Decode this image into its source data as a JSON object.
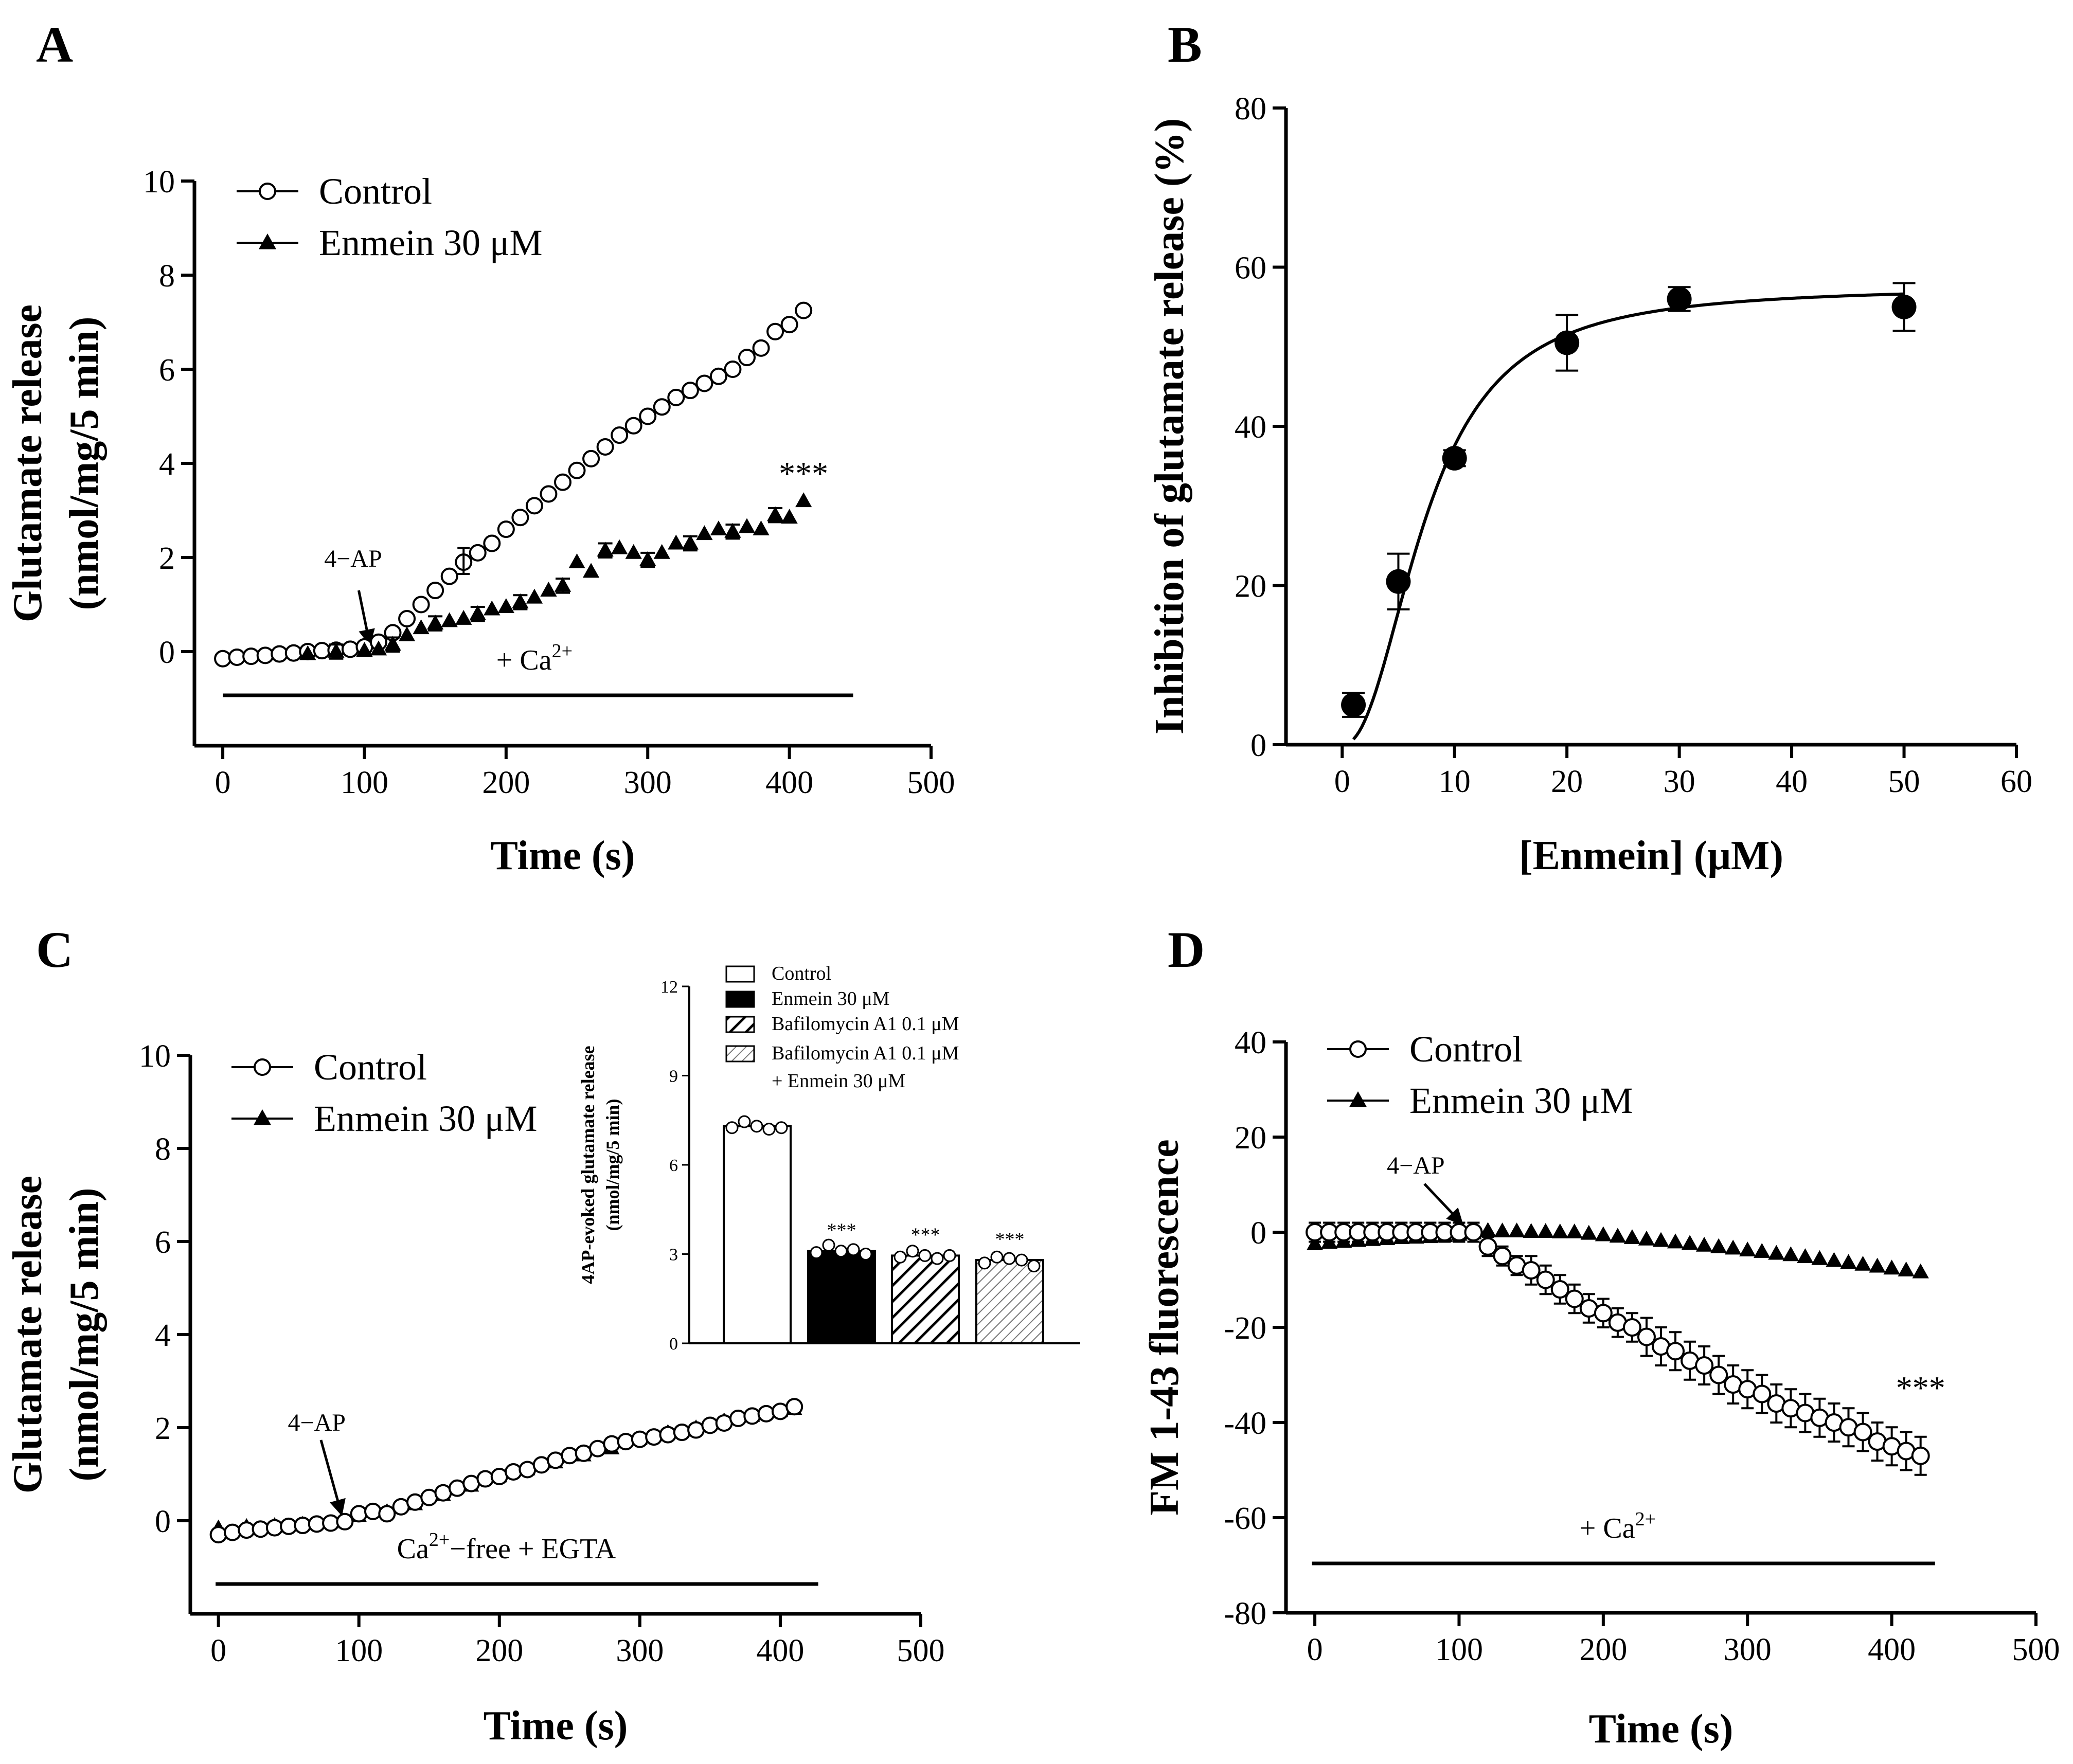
{
  "panels": {
    "A": {
      "letter": "A"
    },
    "B": {
      "letter": "B"
    },
    "C": {
      "letter": "C"
    },
    "D": {
      "letter": "D"
    }
  },
  "chart_data": [
    {
      "id": "A",
      "type": "line",
      "xlabel": "Time (s)",
      "ylabel": [
        "Glutamate release",
        "(nmol/mg/5 min)"
      ],
      "xlim": [
        -20,
        500
      ],
      "ylim": [
        -2,
        10
      ],
      "xticks": [
        0,
        100,
        200,
        300,
        400,
        500
      ],
      "yticks": [
        0,
        2,
        4,
        6,
        8,
        10
      ],
      "legend": [
        "Control",
        "Enmein 30 μM"
      ],
      "annotation_arrow": "4−AP",
      "condition_text": "+ Ca",
      "condition_sup": "2+",
      "significance": "***",
      "series": [
        {
          "name": "Control",
          "marker": "open-circle",
          "x": [
            0,
            10,
            20,
            30,
            40,
            50,
            60,
            70,
            80,
            90,
            100,
            110,
            120,
            130,
            140,
            150,
            160,
            170,
            180,
            190,
            200,
            210,
            220,
            230,
            240,
            250,
            260,
            270,
            280,
            290,
            300,
            310,
            320,
            330,
            340,
            350,
            360,
            370,
            380,
            390,
            400,
            410
          ],
          "y": [
            -0.15,
            -0.12,
            -0.1,
            -0.08,
            -0.05,
            -0.03,
            0,
            0.02,
            0.03,
            0.05,
            0.1,
            0.2,
            0.4,
            0.7,
            1.0,
            1.3,
            1.6,
            1.9,
            2.1,
            2.3,
            2.6,
            2.85,
            3.1,
            3.35,
            3.6,
            3.85,
            4.1,
            4.35,
            4.6,
            4.8,
            5.0,
            5.2,
            5.4,
            5.55,
            5.7,
            5.85,
            6.0,
            6.25,
            6.45,
            6.8,
            6.95,
            7.25
          ]
        },
        {
          "name": "Enmein 30 μM",
          "marker": "filled-triangle",
          "x": [
            60,
            80,
            100,
            110,
            120,
            130,
            140,
            150,
            160,
            170,
            180,
            190,
            200,
            210,
            220,
            230,
            240,
            250,
            260,
            270,
            280,
            290,
            300,
            310,
            320,
            330,
            340,
            350,
            360,
            370,
            380,
            390,
            400,
            410
          ],
          "y": [
            -0.05,
            0,
            0.02,
            0.05,
            0.15,
            0.35,
            0.5,
            0.6,
            0.65,
            0.7,
            0.8,
            0.9,
            0.95,
            1.05,
            1.15,
            1.3,
            1.4,
            1.9,
            1.7,
            2.15,
            2.2,
            2.1,
            1.95,
            2.1,
            2.3,
            2.3,
            2.5,
            2.6,
            2.55,
            2.65,
            2.6,
            2.9,
            2.85,
            3.2
          ]
        }
      ]
    },
    {
      "id": "B",
      "type": "scatter",
      "xlabel": "[Enmein] (μM)",
      "ylabel": [
        "Inhibition of glutamate release (%)"
      ],
      "xlim": [
        -5,
        60
      ],
      "ylim": [
        0,
        80
      ],
      "xticks": [
        0,
        10,
        20,
        30,
        40,
        50,
        60
      ],
      "yticks": [
        0,
        20,
        40,
        60,
        80
      ],
      "series": [
        {
          "name": "Inhibition",
          "marker": "filled-circle",
          "x": [
            1,
            5,
            10,
            20,
            30,
            50
          ],
          "y": [
            5,
            20.5,
            36,
            50.5,
            56,
            55
          ],
          "err": [
            1.5,
            3.5,
            1.0,
            3.5,
            1.5,
            3.0
          ]
        }
      ],
      "fit": {
        "type": "sigmoid",
        "top": 57.5,
        "ec50": 7.5,
        "hill": 2.2
      }
    },
    {
      "id": "C",
      "type": "line",
      "xlabel": "Time (s)",
      "ylabel": [
        "Glutamate release",
        "(nmol/mg/5 min)"
      ],
      "xlim": [
        -20,
        500
      ],
      "ylim": [
        -2,
        10
      ],
      "xticks": [
        0,
        100,
        200,
        300,
        400,
        500
      ],
      "yticks": [
        0,
        2,
        4,
        6,
        8,
        10
      ],
      "legend": [
        "Control",
        "Enmein 30 μM"
      ],
      "annotation_arrow": "4−AP",
      "condition_text": "Ca",
      "condition_sup": "2+",
      "condition_rest": "−free  + EGTA",
      "series": [
        {
          "name": "Control",
          "marker": "open-circle",
          "x": [
            0,
            10,
            20,
            30,
            40,
            50,
            60,
            70,
            80,
            90,
            100,
            110,
            120,
            130,
            140,
            150,
            160,
            170,
            180,
            190,
            200,
            210,
            220,
            230,
            240,
            250,
            260,
            270,
            280,
            290,
            300,
            310,
            320,
            330,
            340,
            350,
            360,
            370,
            380,
            390,
            400,
            410
          ],
          "y": [
            -0.3,
            -0.25,
            -0.2,
            -0.18,
            -0.15,
            -0.12,
            -0.1,
            -0.07,
            -0.05,
            -0.02,
            0.15,
            0.2,
            0.15,
            0.3,
            0.4,
            0.5,
            0.6,
            0.7,
            0.8,
            0.9,
            0.95,
            1.05,
            1.1,
            1.2,
            1.3,
            1.4,
            1.45,
            1.55,
            1.65,
            1.7,
            1.75,
            1.8,
            1.85,
            1.9,
            1.95,
            2.05,
            2.1,
            2.2,
            2.25,
            2.3,
            2.35,
            2.45
          ]
        },
        {
          "name": "Enmein 30 μM",
          "marker": "filled-triangle",
          "x": [
            0,
            20,
            40,
            60,
            80,
            100,
            120,
            140,
            160,
            180,
            200,
            220,
            240,
            260,
            280,
            300,
            320,
            340,
            360,
            380,
            400,
            410
          ],
          "y": [
            -0.15,
            -0.12,
            -0.1,
            -0.07,
            -0.04,
            0.1,
            0.2,
            0.35,
            0.55,
            0.75,
            0.95,
            1.1,
            1.25,
            1.4,
            1.55,
            1.75,
            1.9,
            2.0,
            2.15,
            2.25,
            2.35,
            2.4
          ]
        }
      ]
    },
    {
      "id": "C-inset",
      "type": "bar",
      "ylabel": [
        "4AP-evoked glutamate release",
        "(nmol/mg/5 min)"
      ],
      "ylim": [
        0,
        12
      ],
      "yticks": [
        0,
        3,
        6,
        9,
        12
      ],
      "categories": [
        "Control",
        "Enmein 30 μM",
        "Bafilomycin A1 0.1 μM",
        "Bafilomycin A1 0.1 μM + Enmein 30 μM"
      ],
      "legend": [
        "Control",
        "Enmein 30 μM",
        "Bafilomycin A1 0.1 μM",
        "Bafilomycin A1 0.1 μM",
        "+ Enmein 30 μM"
      ],
      "values": [
        7.3,
        3.1,
        2.95,
        2.8
      ],
      "significance": [
        "",
        "***",
        "***",
        "***"
      ],
      "points": [
        [
          7.25,
          7.45,
          7.3,
          7.2,
          7.25
        ],
        [
          3.05,
          3.3,
          3.1,
          3.15,
          3.0
        ],
        [
          2.9,
          3.1,
          2.95,
          2.85,
          2.95
        ],
        [
          2.7,
          2.9,
          2.85,
          2.8,
          2.6
        ]
      ]
    },
    {
      "id": "D",
      "type": "line",
      "xlabel": "Time (s)",
      "ylabel": [
        "FM 1-43 fluorescence"
      ],
      "xlim": [
        -20,
        500
      ],
      "ylim": [
        -80,
        40
      ],
      "xticks": [
        0,
        100,
        200,
        300,
        400,
        500
      ],
      "yticks": [
        -80,
        -60,
        -40,
        -20,
        0,
        20,
        40
      ],
      "legend": [
        "Control",
        "Enmein 30 μM"
      ],
      "annotation_arrow": "4−AP",
      "condition_text": "+ Ca",
      "condition_sup": "2+",
      "significance": "***",
      "series": [
        {
          "name": "Control",
          "marker": "open-circle",
          "x": [
            0,
            10,
            20,
            30,
            40,
            50,
            60,
            70,
            80,
            90,
            100,
            110,
            120,
            130,
            140,
            150,
            160,
            170,
            180,
            190,
            200,
            210,
            220,
            230,
            240,
            250,
            260,
            270,
            280,
            290,
            300,
            310,
            320,
            330,
            340,
            350,
            360,
            370,
            380,
            390,
            400,
            410,
            420
          ],
          "y": [
            0,
            0,
            0,
            0,
            0,
            0,
            0,
            0,
            0,
            0,
            0,
            0,
            -3,
            -5,
            -7,
            -8,
            -10,
            -12,
            -14,
            -16,
            -17,
            -19,
            -20,
            -22,
            -24,
            -25,
            -27,
            -28,
            -30,
            -32,
            -33,
            -34,
            -36,
            -37,
            -38,
            -39,
            -40,
            -41,
            -42,
            -44,
            -45,
            -46,
            -47
          ],
          "err": [
            2,
            2,
            2,
            2,
            2,
            2,
            2,
            2,
            2,
            2,
            2,
            2,
            2,
            2,
            2,
            3,
            3,
            3,
            3,
            3,
            3,
            3,
            3,
            4,
            4,
            4,
            4,
            4,
            4,
            4,
            4,
            4,
            4,
            4,
            4,
            4,
            4,
            4,
            4,
            4,
            4,
            4,
            4
          ]
        },
        {
          "name": "Enmein 30 μM",
          "marker": "filled-triangle",
          "x": [
            0,
            10,
            20,
            30,
            40,
            50,
            60,
            70,
            80,
            90,
            100,
            110,
            120,
            130,
            140,
            150,
            160,
            170,
            180,
            190,
            200,
            210,
            220,
            230,
            240,
            250,
            260,
            270,
            280,
            290,
            300,
            310,
            320,
            330,
            340,
            350,
            360,
            370,
            380,
            390,
            400,
            410,
            420
          ],
          "y": [
            -2.5,
            -2.2,
            -2,
            -1.8,
            -1.6,
            -1.4,
            -1.2,
            -1.1,
            -1,
            -0.8,
            -0.5,
            -0.2,
            0.3,
            0.2,
            0.2,
            0.1,
            0.1,
            0,
            0,
            -0.3,
            -0.6,
            -0.9,
            -1.2,
            -1.5,
            -1.8,
            -2.1,
            -2.4,
            -2.8,
            -3.1,
            -3.4,
            -3.8,
            -4.1,
            -4.5,
            -4.8,
            -5.2,
            -5.6,
            -6,
            -6.4,
            -6.8,
            -7.2,
            -7.6,
            -8,
            -8.4
          ]
        }
      ]
    }
  ]
}
